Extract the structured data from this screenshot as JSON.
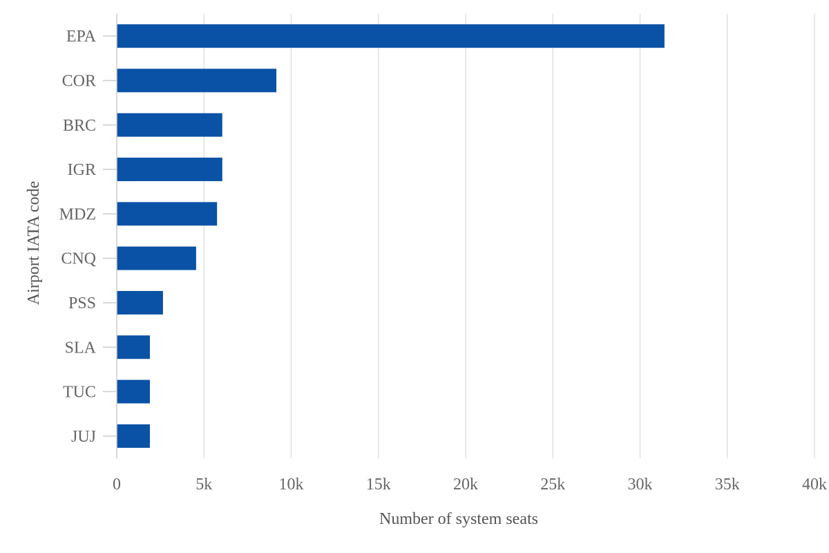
{
  "chart_data": {
    "type": "bar",
    "orientation": "horizontal",
    "categories": [
      "EPA",
      "COR",
      "BRC",
      "IGR",
      "MDZ",
      "CNQ",
      "PSS",
      "SLA",
      "TUC",
      "JUJ"
    ],
    "values": [
      31400,
      9150,
      6050,
      6050,
      5750,
      4550,
      2650,
      1900,
      1900,
      1900
    ],
    "xlabel": "Number of system seats",
    "ylabel": "Airport IATA code",
    "xlim": [
      0,
      40000
    ],
    "x_ticks": [
      0,
      5000,
      10000,
      15000,
      20000,
      25000,
      30000,
      35000,
      40000
    ],
    "x_tick_labels": [
      "0",
      "5k",
      "10k",
      "15k",
      "20k",
      "25k",
      "30k",
      "35k",
      "40k"
    ],
    "grid": "vertical",
    "bar_color": "#0a52a6",
    "legend": "none"
  }
}
